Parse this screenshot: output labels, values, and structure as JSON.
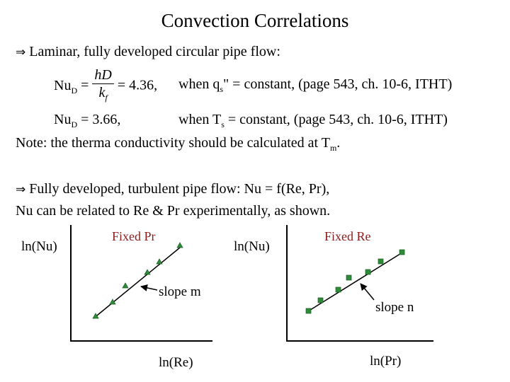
{
  "slide": {
    "title": "Convection Correlations"
  },
  "laminar": {
    "heading": "Laminar, fully developed circular pipe flow:",
    "eq1": {
      "lhs": "Nu",
      "lhs_sub": "D",
      "eq_sign": "=",
      "frac_num": "hD",
      "frac_den": "k",
      "frac_den_sub": "f",
      "rhs": "= 4.36,",
      "condition_pre": "when q",
      "condition_sub": "s",
      "condition_post": "\" = constant, (page 543, ch. 10-6, ITHT)"
    },
    "eq2": {
      "lhs": "Nu",
      "lhs_sub": "D",
      "rhs": " = 3.66,",
      "condition_pre": "when T",
      "condition_sub": "s",
      "condition_post": " = constant, (page 543, ch. 10-6, ITHT)"
    },
    "note_pre": "Note: the therma conductivity should be calculated at T",
    "note_sub": "m",
    "note_post": "."
  },
  "turbulent": {
    "heading": "Fully developed, turbulent pipe flow:  Nu = f(Re, Pr),",
    "line2": "Nu can be related to Re & Pr experimentally, as shown."
  },
  "plot_left": {
    "ylabel": "ln(Nu)",
    "xlabel": "ln(Re)",
    "legend": "Fixed Pr",
    "annotation": "slope m",
    "marker_color": "#2e8b3a",
    "legend_color": "#8b1a1a"
  },
  "plot_right": {
    "ylabel": "ln(Nu)",
    "xlabel": "ln(Pr)",
    "legend": "Fixed Re",
    "annotation": "slope n",
    "marker_color": "#2e8b3a",
    "legend_color": "#8b1a1a"
  },
  "icons": {
    "implies": "⇒"
  }
}
